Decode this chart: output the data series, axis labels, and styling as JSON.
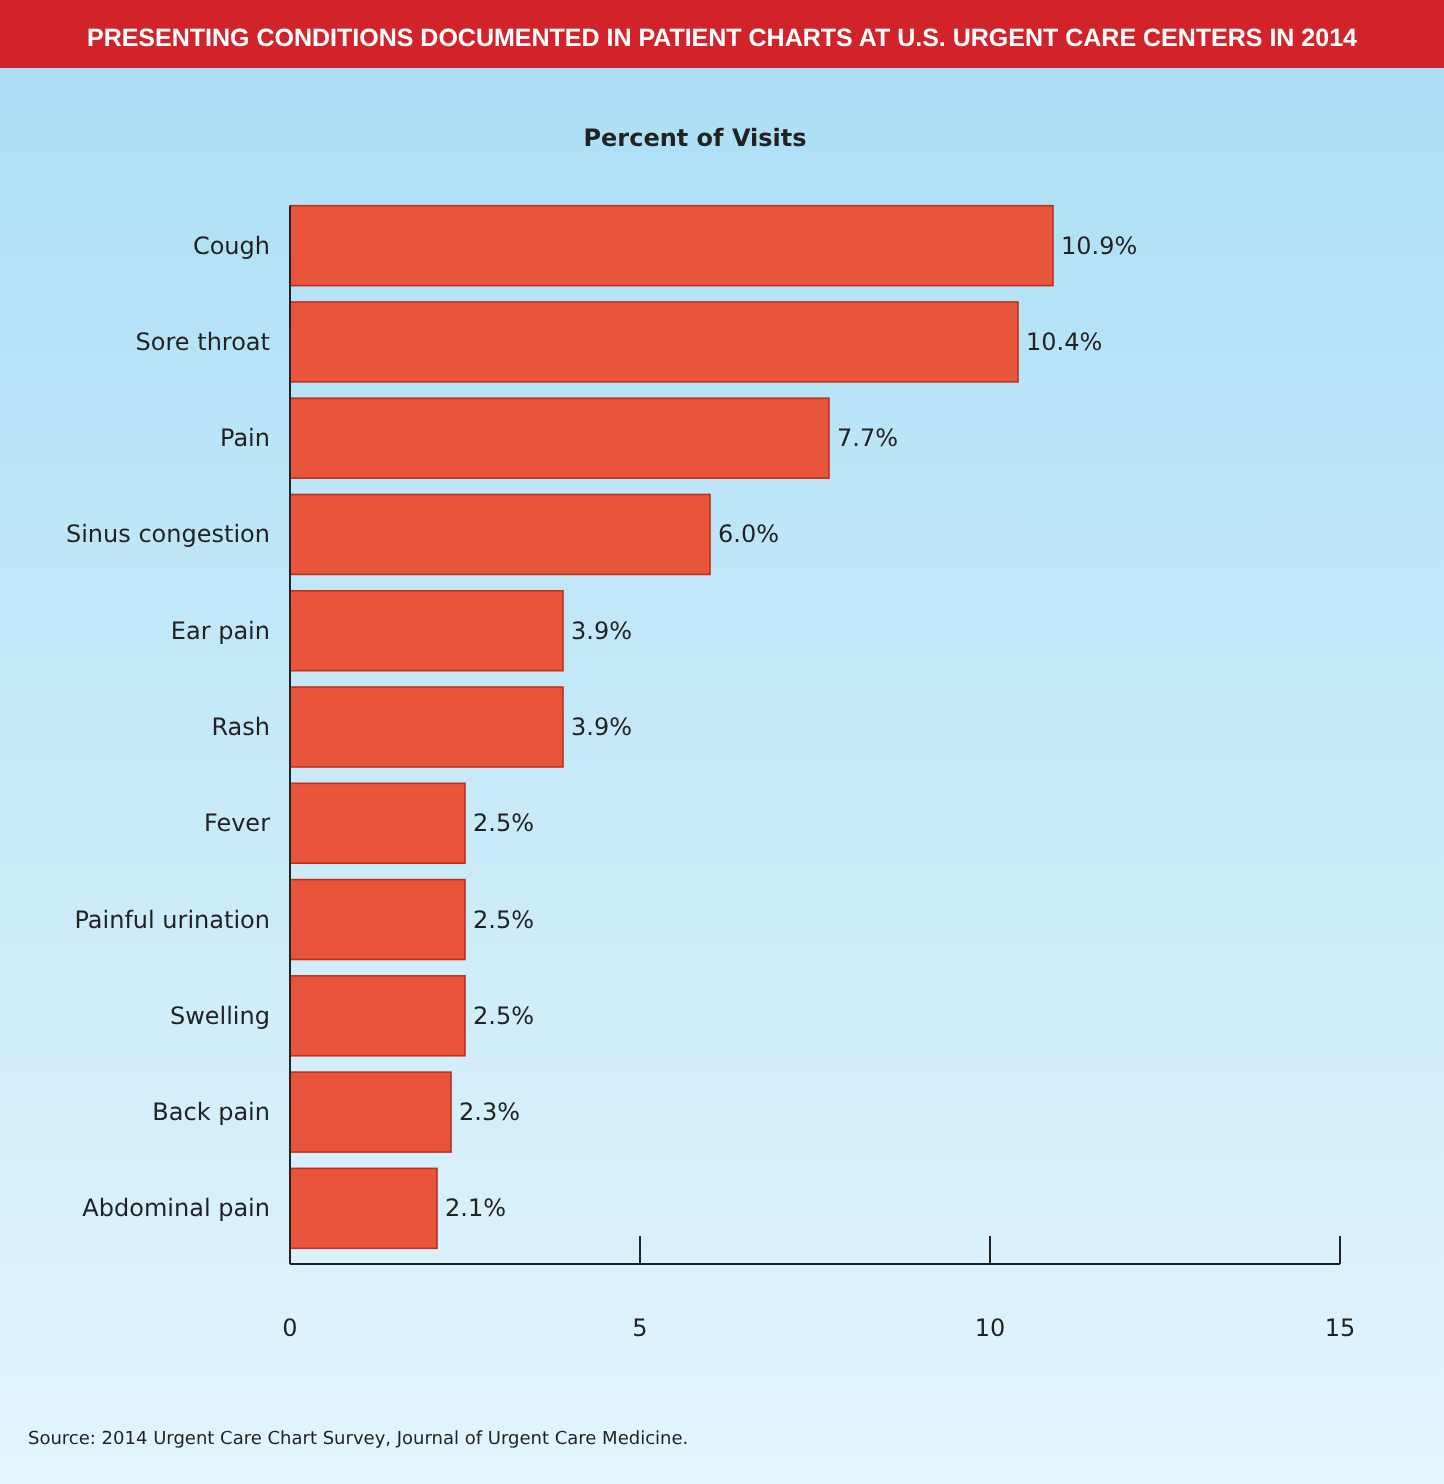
{
  "chart_data": {
    "type": "bar",
    "orientation": "horizontal",
    "title": "PRESENTING CONDITIONS DOCUMENTED IN PATIENT CHARTS AT U.S. URGENT CARE CENTERS IN 2014",
    "xlabel": "Percent of Visits",
    "categories": [
      "Cough",
      "Sore throat",
      "Pain",
      "Sinus congestion",
      "Ear pain",
      "Rash",
      "Fever",
      "Painful urination",
      "Swelling",
      "Back pain",
      "Abdominal pain"
    ],
    "values": [
      10.9,
      10.4,
      7.7,
      6.0,
      3.9,
      3.9,
      2.5,
      2.5,
      2.5,
      2.3,
      2.1
    ],
    "value_labels": [
      "10.9%",
      "10.4%",
      "7.7%",
      "6.0%",
      "3.9%",
      "3.9%",
      "2.5%",
      "2.5%",
      "2.5%",
      "2.3%",
      "2.1%"
    ],
    "color": "#e8553a",
    "xlim": [
      0,
      15
    ],
    "xticks": [
      0,
      5,
      10,
      15
    ],
    "grid": false,
    "annotations": [
      "Source: 2014 Urgent Care Chart Survey, Journal of Urgent Care Medicine."
    ]
  }
}
